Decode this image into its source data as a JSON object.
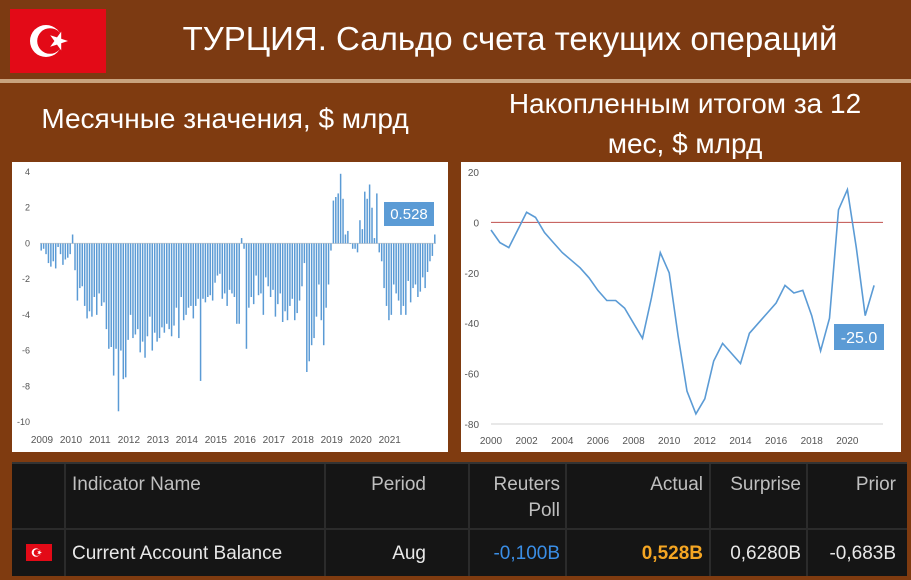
{
  "title": "ТУРЦИЯ. Сальдо счета текущих операций",
  "subtitle_left": "Месячные значения, $ млрд",
  "subtitle_right_line1": "Накопленным итогом за 12",
  "subtitle_right_line2": "мес, $ млрд",
  "colors": {
    "flag": "#e30a17",
    "bar": "#5b9bd5",
    "line": "#5b9bd5",
    "zero_line": "#c0504d",
    "actual": "#f5a623",
    "reuters": "#3a8ee6"
  },
  "chart_data": [
    {
      "type": "bar",
      "ylim": [
        -10,
        4
      ],
      "yticks": [
        "4",
        "2",
        "0",
        "-2",
        "-4",
        "-6",
        "-8",
        "-10"
      ],
      "xticks": [
        "2009",
        "2010",
        "2011",
        "2012",
        "2013",
        "2014",
        "2015",
        "2016",
        "2017",
        "2018",
        "2019",
        "2020",
        "2021"
      ],
      "label": "0.528",
      "series": [
        {
          "start": "2009-01",
          "values": [
            -0.4,
            -0.3,
            -0.6,
            -1.1,
            -1.3,
            -1.0,
            -1.4,
            -0.2,
            -0.6,
            -1.2,
            -0.9,
            -0.8,
            -0.6,
            0.5,
            -1.5,
            -3.2,
            -2.5,
            -2.4,
            -3.5,
            -4.2,
            -3.8,
            -4.1,
            -3.0,
            -4.0,
            -2.8,
            -3.5,
            -3.3,
            -4.8,
            -5.9,
            -5.8,
            -7.4,
            -5.9,
            -9.4,
            -6.0,
            -7.6,
            -7.5,
            -5.4,
            -4.0,
            -5.3,
            -5.1,
            -4.8,
            -6.1,
            -5.5,
            -6.4,
            -5.2,
            -4.1,
            -6.0,
            -5.0,
            -5.5,
            -5.3,
            -4.7,
            -5.0,
            -4.5,
            -4.8,
            -5.2,
            -4.6,
            -3.6,
            -5.3,
            -3.0,
            -4.3,
            -4.0,
            -3.6,
            -3.5,
            -4.2,
            -3.5,
            -3.1,
            -7.7,
            -3.1,
            -3.3,
            -3.0,
            -2.9,
            -3.2,
            -2.2,
            -1.8,
            -1.7,
            -3.1,
            -2.8,
            -3.5,
            -2.6,
            -2.8,
            -3.0,
            -4.5,
            -4.5,
            0.3,
            -0.3,
            -5.9,
            -3.6,
            -3.0,
            -3.4,
            -1.8,
            -2.9,
            -2.8,
            -4.0,
            -1.9,
            -2.4,
            -3.0,
            -2.6,
            -4.1,
            -3.4,
            -2.8,
            -4.4,
            -3.8,
            -4.3,
            -3.5,
            -3.1,
            -4.3,
            -3.9,
            -3.2,
            -2.4,
            -1.1,
            -7.2,
            -6.6,
            -5.7,
            -5.3,
            -4.1,
            -2.3,
            -4.3,
            -5.7,
            -3.6,
            -2.3,
            -0.4,
            2.4,
            2.6,
            2.8,
            3.9,
            2.5,
            0.5,
            0.7,
            0.0,
            -0.3,
            -0.3,
            -0.5,
            1.3,
            0.8,
            2.9,
            2.5,
            3.3,
            2.0,
            0.3,
            2.8,
            -0.5,
            -1.0,
            -2.5,
            -3.5,
            -4.3,
            -4.0,
            -2.3,
            -2.8,
            -3.2,
            -4.0,
            -3.5,
            -4.0,
            -2.1,
            -3.3,
            -2.5,
            -2.3,
            -3.0,
            -2.7,
            -1.9,
            -2.5,
            -1.6,
            -1.0,
            -0.7,
            0.5
          ]
        }
      ]
    },
    {
      "type": "line",
      "ylim": [
        -80,
        20
      ],
      "yticks": [
        "20",
        "0",
        "-20",
        "-40",
        "-60",
        "-80"
      ],
      "xticks": [
        "2000",
        "2002",
        "2004",
        "2006",
        "2008",
        "2010",
        "2012",
        "2014",
        "2016",
        "2018",
        "2020"
      ],
      "label": "-25.0",
      "series": [
        {
          "x": [
            2000,
            2000.5,
            2001,
            2001.5,
            2002,
            2002.5,
            2003,
            2003.5,
            2004,
            2004.5,
            2005,
            2005.5,
            2006,
            2006.5,
            2007,
            2007.5,
            2008,
            2008.5,
            2009,
            2009.5,
            2010,
            2010.5,
            2011,
            2011.5,
            2012,
            2012.5,
            2013,
            2013.5,
            2014,
            2014.5,
            2015,
            2015.5,
            2016,
            2016.5,
            2017,
            2017.5,
            2018,
            2018.5,
            2019,
            2019.5,
            2020,
            2020.5,
            2021,
            2021.5
          ],
          "y": [
            -3,
            -8,
            -10,
            -3,
            4,
            2,
            -4,
            -8,
            -12,
            -15,
            -18,
            -22,
            -27,
            -31,
            -31,
            -34,
            -40,
            -46,
            -30,
            -12,
            -20,
            -45,
            -67,
            -76,
            -70,
            -55,
            -48,
            -52,
            -56,
            -44,
            -40,
            -36,
            -32,
            -25,
            -28,
            -27,
            -37,
            -51,
            -38,
            5,
            13,
            -10,
            -37,
            -25
          ]
        }
      ]
    }
  ],
  "table": {
    "headers": {
      "name": "Indicator Name",
      "period": "Period",
      "reuters_line1": "Reuters",
      "reuters_line2": "Poll",
      "actual": "Actual",
      "surprise": "Surprise",
      "prior": "Prior"
    },
    "row": {
      "name": "Current Account Balance",
      "period": "Aug",
      "reuters": "-0,100B",
      "actual": "0,528B",
      "surprise": "0,6280B",
      "prior": "-0,683B"
    }
  }
}
